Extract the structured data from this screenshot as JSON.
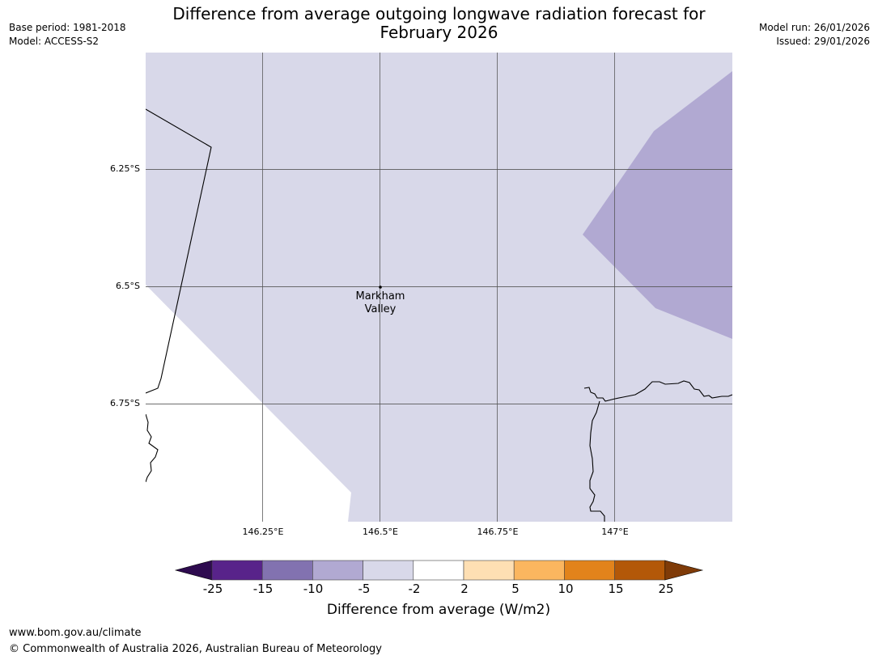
{
  "header": {
    "title_line1": "Difference from average outgoing longwave radiation forecast for",
    "title_line2": "February 2026",
    "base_period": "Base period: 1981-2018",
    "model": "Model: ACCESS-S2",
    "model_run": "Model run: 26/01/2026",
    "issued": "Issued: 29/01/2026"
  },
  "map": {
    "latitude_labels": [
      "6.25°S",
      "6.5°S",
      "6.75°S"
    ],
    "longitude_labels": [
      "146.25°E",
      "146.5°E",
      "146.75°E",
      "147°E"
    ],
    "place": {
      "name_line1": "Markham",
      "name_line2": "Valley"
    },
    "region_colors": {
      "main": "#d8d8e9",
      "east_patch": "#b1a9d2",
      "outside": "#ffffff"
    },
    "grid_color": "#555555",
    "coastline_color": "#000000"
  },
  "legend": {
    "label": "Difference from average (W/m2)",
    "ticks": [
      "-25",
      "-15",
      "-10",
      "-5",
      "-2",
      "2",
      "5",
      "10",
      "15",
      "25"
    ],
    "bins": [
      {
        "from": "-25",
        "to": "-15",
        "color": "#58238a"
      },
      {
        "from": "-15",
        "to": "-10",
        "color": "#8272b0"
      },
      {
        "from": "-10",
        "to": "-5",
        "color": "#b1a9d2"
      },
      {
        "from": "-5",
        "to": "-2",
        "color": "#d8d8e9"
      },
      {
        "from": "-2",
        "to": "2",
        "color": "#ffffff"
      },
      {
        "from": "2",
        "to": "5",
        "color": "#fedfb3"
      },
      {
        "from": "5",
        "to": "10",
        "color": "#fbb65f"
      },
      {
        "from": "10",
        "to": "15",
        "color": "#e2831b"
      },
      {
        "from": "15",
        "to": "25",
        "color": "#b35808"
      }
    ],
    "under_color": "#2e0b4f",
    "over_color": "#7f3b08"
  },
  "footer": {
    "url": "www.bom.gov.au/climate",
    "copyright": "© Commonwealth of Australia 2026, Australian Bureau of Meteorology"
  }
}
